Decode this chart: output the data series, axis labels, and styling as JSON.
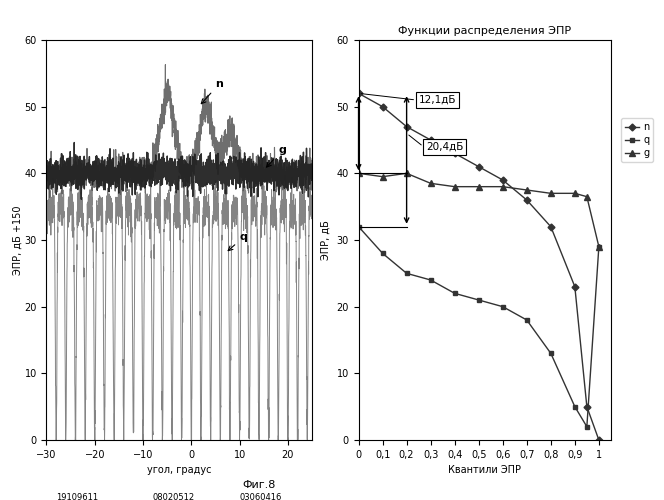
{
  "left_plot": {
    "xlabel": "угол, градус",
    "ylabel": "ЭПР, дБ +150",
    "xlim": [
      -30,
      25
    ],
    "ylim": [
      0,
      60
    ],
    "yticks": [
      0,
      10,
      20,
      30,
      40,
      50,
      60
    ],
    "ytick_labels": [
      "0",
      "10",
      "20",
      "30",
      "40",
      "50",
      "60"
    ],
    "xticks": [
      -30,
      -20,
      -10,
      0,
      10,
      20
    ],
    "bottom_labels": [
      "19109611",
      "08020512",
      "03060416"
    ]
  },
  "right_plot": {
    "title": "Функции распределения ЭПР",
    "xlabel": "Квантили ЭПР",
    "ylabel": "ЭПР, дБ",
    "xlim": [
      0,
      1.05
    ],
    "ylim": [
      0,
      60
    ],
    "xticks": [
      0,
      0.1,
      0.2,
      0.3,
      0.4,
      0.5,
      0.6,
      0.7,
      0.8,
      0.9,
      1.0
    ],
    "xtick_labels": [
      "0",
      "0,1",
      "0,2",
      "0,3",
      "0,4",
      "0,5",
      "0,6",
      "0,7",
      "0,8",
      "0,9",
      "1"
    ],
    "yticks": [
      0,
      10,
      20,
      30,
      40,
      50,
      60
    ],
    "annotation_12": "12,1дБ",
    "annotation_20": "20,4дБ",
    "n_x": [
      0,
      0.1,
      0.2,
      0.3,
      0.4,
      0.5,
      0.6,
      0.7,
      0.8,
      0.9,
      0.95,
      1.0
    ],
    "n_y": [
      52,
      50,
      47,
      45,
      43,
      41,
      39,
      36,
      32,
      23,
      5,
      0
    ],
    "q_x": [
      0,
      0.1,
      0.2,
      0.3,
      0.4,
      0.5,
      0.6,
      0.7,
      0.8,
      0.9,
      0.95,
      1.0
    ],
    "q_y": [
      32,
      28,
      25,
      24,
      22,
      21,
      20,
      18,
      13,
      5,
      2,
      29
    ],
    "g_x": [
      0,
      0.1,
      0.2,
      0.3,
      0.4,
      0.5,
      0.6,
      0.7,
      0.8,
      0.9,
      0.95,
      1.0
    ],
    "g_y": [
      40,
      39.5,
      40,
      38.5,
      38,
      38,
      38,
      37.5,
      37,
      37,
      36.5,
      29
    ]
  },
  "fig_caption": "Фиг.8",
  "background_color": "#ffffff"
}
